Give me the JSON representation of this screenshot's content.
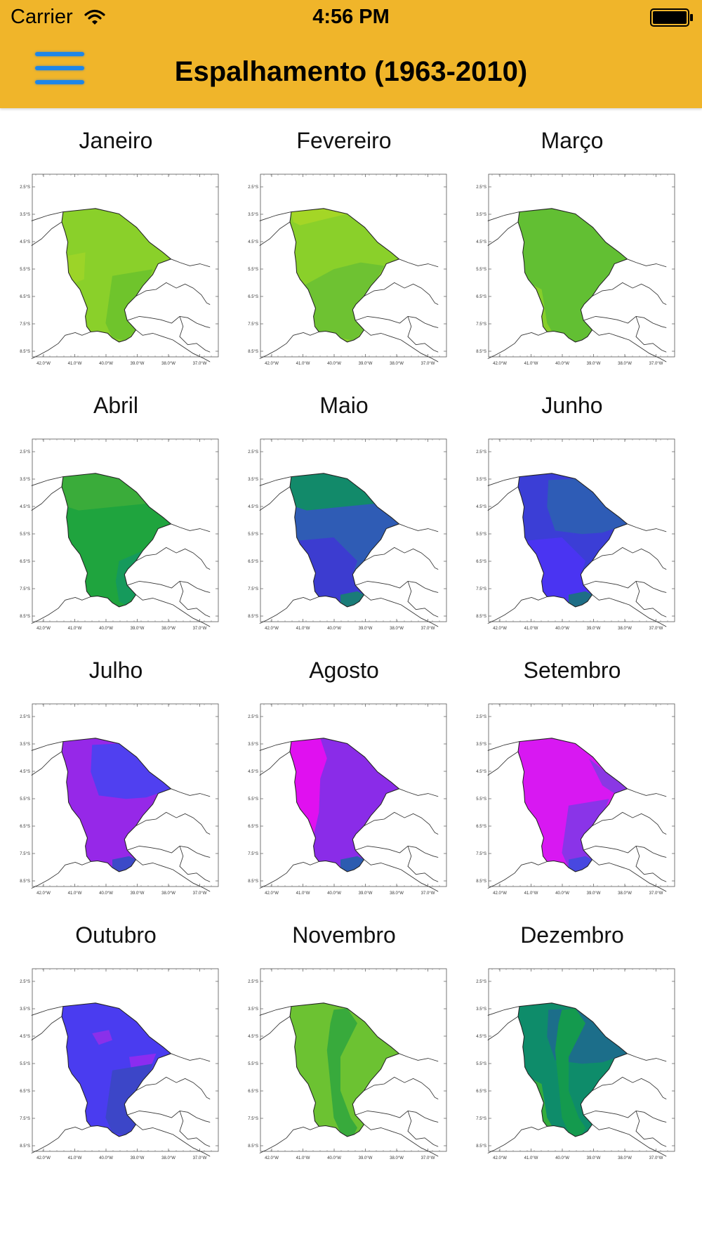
{
  "status_bar": {
    "carrier": "Carrier",
    "time": "4:56 PM"
  },
  "header": {
    "title": "Espalhamento (1963-2010)",
    "menu_icon": "hamburger-menu-icon",
    "background": "#f0b52a",
    "menu_color": "#1e86e8"
  },
  "map_axes": {
    "y_ticks": [
      "2.5°S",
      "3.5°S",
      "4.5°S",
      "5.5°S",
      "6.5°S",
      "7.5°S",
      "8.5°S"
    ],
    "x_ticks": [
      "42.0°W",
      "41.0°W",
      "40.0°W",
      "39.0°W",
      "38.0°W",
      "37.0°W"
    ]
  },
  "months": [
    {
      "name": "Janeiro",
      "base": "#8ad02a",
      "patches": [
        {
          "shape": "south",
          "color": "#6fc42c"
        },
        {
          "shape": "west",
          "color": "#9cd428"
        }
      ]
    },
    {
      "name": "Fevereiro",
      "base": "#8ad02a",
      "patches": [
        {
          "shape": "south-wide",
          "color": "#6ec232"
        },
        {
          "shape": "north-rim",
          "color": "#a4d626"
        }
      ]
    },
    {
      "name": "Março",
      "base": "#62bf33",
      "patches": [
        {
          "shape": "sw",
          "color": "#86ce2a"
        }
      ]
    },
    {
      "name": "Abril",
      "base": "#1fa43e",
      "patches": [
        {
          "shape": "north",
          "color": "#3aac3a"
        },
        {
          "shape": "se",
          "color": "#159a5c"
        }
      ]
    },
    {
      "name": "Maio",
      "base": "#2f5cb5",
      "patches": [
        {
          "shape": "north",
          "color": "#128a6a"
        },
        {
          "shape": "sw-deep",
          "color": "#3c3cd0"
        },
        {
          "shape": "tip",
          "color": "#1a7c78"
        }
      ]
    },
    {
      "name": "Junho",
      "base": "#3b3ed6",
      "patches": [
        {
          "shape": "east",
          "color": "#2e5cb6"
        },
        {
          "shape": "sw-deep",
          "color": "#4a34f2"
        },
        {
          "shape": "tip",
          "color": "#1e6e86"
        }
      ]
    },
    {
      "name": "Julho",
      "base": "#9628e8",
      "patches": [
        {
          "shape": "east",
          "color": "#5040f0"
        },
        {
          "shape": "tip",
          "color": "#3c4ac8"
        }
      ]
    },
    {
      "name": "Agosto",
      "base": "#8a2ce8",
      "patches": [
        {
          "shape": "west-strip",
          "color": "#e010f0"
        },
        {
          "shape": "tip",
          "color": "#2c5cb0"
        }
      ]
    },
    {
      "name": "Setembro",
      "base": "#d818f2",
      "patches": [
        {
          "shape": "south",
          "color": "#8a34e8"
        },
        {
          "shape": "east-edge",
          "color": "#8a38e4"
        },
        {
          "shape": "tip",
          "color": "#4848e0"
        }
      ]
    },
    {
      "name": "Outubro",
      "base": "#4a3cf0",
      "patches": [
        {
          "shape": "blob-n",
          "color": "#8a30ea"
        },
        {
          "shape": "blob-e",
          "color": "#8c2cf0"
        },
        {
          "shape": "south",
          "color": "#3c46c8"
        }
      ]
    },
    {
      "name": "Novembro",
      "base": "#6cc232",
      "patches": [
        {
          "shape": "center-band",
          "color": "#38aa3c"
        }
      ]
    },
    {
      "name": "Dezembro",
      "base": "#0e8c6a",
      "patches": [
        {
          "shape": "east",
          "color": "#1c6e8a"
        },
        {
          "shape": "sw",
          "color": "#34ac3c"
        },
        {
          "shape": "center-band",
          "color": "#149a4e"
        }
      ]
    }
  ]
}
